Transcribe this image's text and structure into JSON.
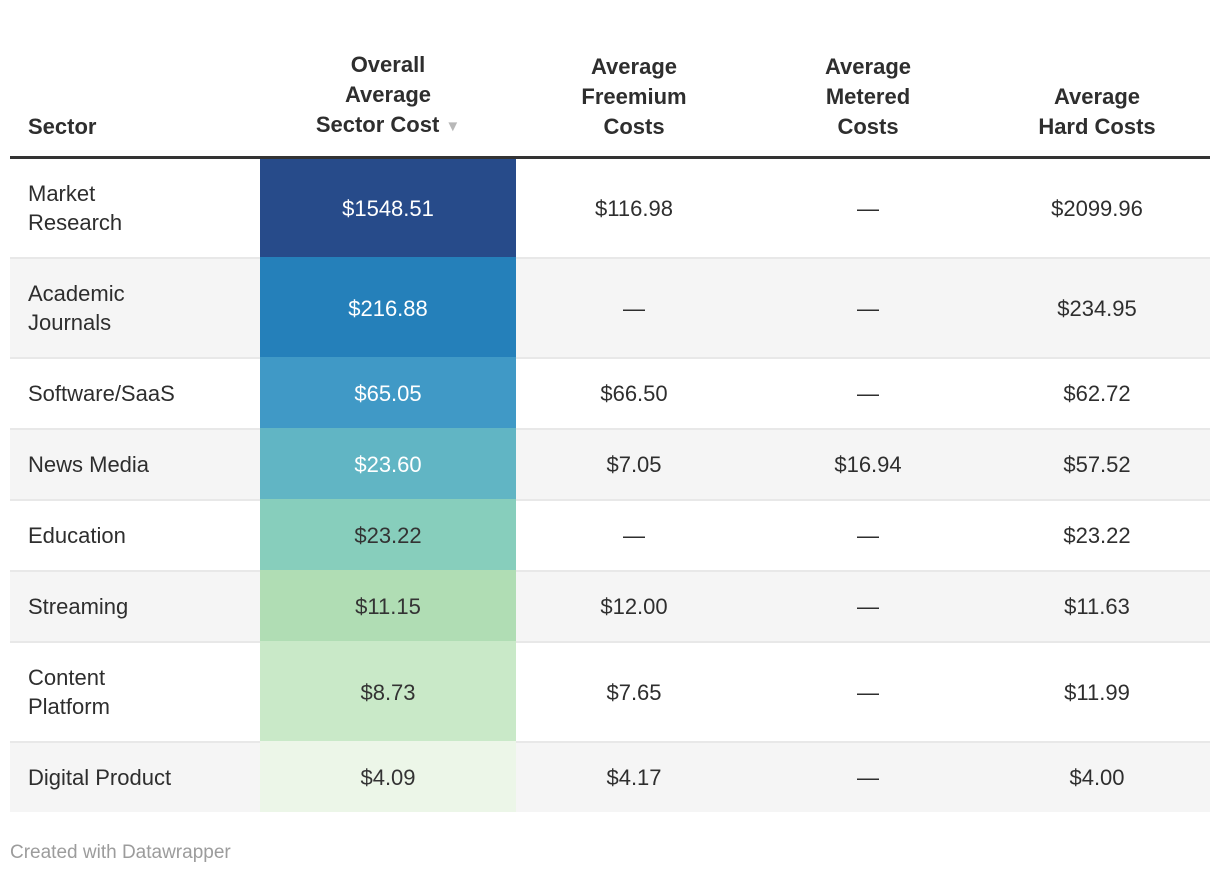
{
  "chart": {
    "credit": "Created with Datawrapper"
  },
  "header": {
    "sort_icon": "▼",
    "columns": [
      {
        "id": "sector",
        "lines": [
          "Sector"
        ]
      },
      {
        "id": "overall",
        "lines": [
          "Overall",
          "Average",
          "Sector Cost"
        ],
        "sorted": "descending"
      },
      {
        "id": "freemium",
        "lines": [
          "Average",
          "Freemium",
          "Costs"
        ]
      },
      {
        "id": "metered",
        "lines": [
          "Average",
          "Metered",
          "Costs"
        ]
      },
      {
        "id": "hard",
        "lines": [
          "Average",
          "Hard Costs"
        ]
      }
    ]
  },
  "rows": [
    {
      "sector_lines": [
        "Market",
        "Research"
      ],
      "overall": "$1548.51",
      "heat_bg": "#274b8a",
      "heat_fg": "#ffffff",
      "freemium": "$116.98",
      "metered": "—",
      "hard": "$2099.96",
      "zebra": false
    },
    {
      "sector_lines": [
        "Academic",
        "Journals"
      ],
      "overall": "$216.88",
      "heat_bg": "#2580ba",
      "heat_fg": "#ffffff",
      "freemium": "—",
      "metered": "—",
      "hard": "$234.95",
      "zebra": true
    },
    {
      "sector_lines": [
        "Software/SaaS"
      ],
      "overall": "$65.05",
      "heat_bg": "#4099c6",
      "heat_fg": "#ffffff",
      "freemium": "$66.50",
      "metered": "—",
      "hard": "$62.72",
      "zebra": false
    },
    {
      "sector_lines": [
        "News Media"
      ],
      "overall": "$23.60",
      "heat_bg": "#61b5c4",
      "heat_fg": "#ffffff",
      "freemium": "$7.05",
      "metered": "$16.94",
      "hard": "$57.52",
      "zebra": true
    },
    {
      "sector_lines": [
        "Education"
      ],
      "overall": "$23.22",
      "heat_bg": "#87cebc",
      "heat_fg": "#333333",
      "freemium": "—",
      "metered": "—",
      "hard": "$23.22",
      "zebra": false
    },
    {
      "sector_lines": [
        "Streaming"
      ],
      "overall": "$11.15",
      "heat_bg": "#b0ddb4",
      "heat_fg": "#333333",
      "freemium": "$12.00",
      "metered": "—",
      "hard": "$11.63",
      "zebra": true
    },
    {
      "sector_lines": [
        "Content",
        "Platform"
      ],
      "overall": "$8.73",
      "heat_bg": "#c9e9c8",
      "heat_fg": "#333333",
      "freemium": "$7.65",
      "metered": "—",
      "hard": "$11.99",
      "zebra": false
    },
    {
      "sector_lines": [
        "Digital Product"
      ],
      "overall": "$4.09",
      "heat_bg": "#ecf6e8",
      "heat_fg": "#333333",
      "freemium": "$4.17",
      "metered": "—",
      "hard": "$4.00",
      "zebra": true
    }
  ],
  "colors": {
    "zebra": "#f5f5f5",
    "separator": "#e8e8e8",
    "header_rule": "#333333",
    "footer_text": "#9c9c9c",
    "sort_icon": "#b8b8b8",
    "heat_scale": [
      "#274b8a",
      "#2580ba",
      "#4099c6",
      "#61b5c4",
      "#87cebc",
      "#b0ddb4",
      "#c9e9c8",
      "#ecf6e8"
    ]
  },
  "chart_data": {
    "type": "table",
    "columns": [
      "Sector",
      "Overall Average Sector Cost",
      "Average Freemium Costs",
      "Average Metered Costs",
      "Average Hard Costs"
    ],
    "rows": [
      [
        "Market Research",
        "$1548.51",
        "$116.98",
        "—",
        "$2099.96"
      ],
      [
        "Academic Journals",
        "$216.88",
        "—",
        "—",
        "$234.95"
      ],
      [
        "Software/SaaS",
        "$65.05",
        "$66.50",
        "—",
        "$62.72"
      ],
      [
        "News Media",
        "$23.60",
        "$7.05",
        "$16.94",
        "$57.52"
      ],
      [
        "Education",
        "$23.22",
        "—",
        "—",
        "$23.22"
      ],
      [
        "Streaming",
        "$11.15",
        "$12.00",
        "—",
        "$11.63"
      ],
      [
        "Content Platform",
        "$8.73",
        "$7.65",
        "—",
        "$11.99"
      ],
      [
        "Digital Product",
        "$4.09",
        "$4.17",
        "—",
        "$4.00"
      ]
    ],
    "sorted_by": "Overall Average Sector Cost",
    "sort_direction": "descending",
    "heatmap_column": "Overall Average Sector Cost",
    "missing_value_symbol": "—"
  }
}
